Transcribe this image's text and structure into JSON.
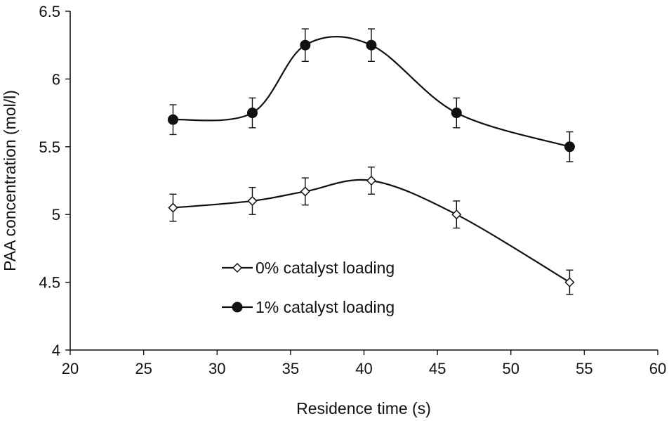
{
  "chart_data": {
    "type": "line",
    "title": "",
    "xlabel": "Residence time (s)",
    "ylabel": "PAA concentration (mol/l)",
    "xlim": [
      20,
      60
    ],
    "ylim": [
      4,
      6.5
    ],
    "xticks": [
      20,
      25,
      30,
      35,
      40,
      45,
      50,
      55,
      60
    ],
    "yticks": [
      4,
      4.5,
      5,
      5.5,
      6,
      6.5
    ],
    "xtick_labels": [
      "20",
      "25",
      "30",
      "35",
      "40",
      "45",
      "50",
      "55",
      "60"
    ],
    "ytick_labels": [
      "4",
      "4.5",
      "5",
      "5.5",
      "6",
      "6.5"
    ],
    "grid": false,
    "legend_position": "center-left",
    "series": [
      {
        "name": "0% catalyst loading",
        "marker": "open-diamond",
        "x": [
          27,
          32.4,
          36,
          40.5,
          46.3,
          54
        ],
        "values": [
          5.05,
          5.1,
          5.17,
          5.25,
          5.0,
          4.5
        ],
        "error": [
          0.1,
          0.1,
          0.1,
          0.1,
          0.1,
          0.09
        ]
      },
      {
        "name": "1% catalyst loading",
        "marker": "filled-circle",
        "x": [
          27,
          32.4,
          36,
          40.5,
          46.3,
          54
        ],
        "values": [
          5.7,
          5.75,
          6.25,
          6.25,
          5.75,
          5.5
        ],
        "error": [
          0.11,
          0.11,
          0.12,
          0.12,
          0.11,
          0.11
        ]
      }
    ]
  }
}
